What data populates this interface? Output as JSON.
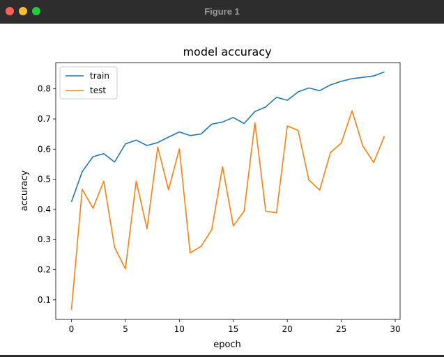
{
  "window": {
    "title": "Figure 1",
    "colors": {
      "close": "#ff5f57",
      "minimize": "#febc2e",
      "maximize": "#28c840"
    }
  },
  "chart_data": {
    "type": "line",
    "title": "model accuracy",
    "xlabel": "epoch",
    "ylabel": "accuracy",
    "xlim": [
      -1.45,
      30.45
    ],
    "ylim": [
      0.035,
      0.887
    ],
    "xticks": [
      0,
      5,
      10,
      15,
      20,
      25,
      30
    ],
    "yticks": [
      0.1,
      0.2,
      0.3,
      0.4,
      0.5,
      0.6,
      0.7,
      0.8
    ],
    "legend": {
      "placement": "upper-left"
    },
    "grid": false,
    "x": [
      0,
      1,
      2,
      3,
      4,
      5,
      6,
      7,
      8,
      9,
      10,
      11,
      12,
      13,
      14,
      15,
      16,
      17,
      18,
      19,
      20,
      21,
      22,
      23,
      24,
      25,
      26,
      27,
      28,
      29
    ],
    "series": [
      {
        "name": "train",
        "color": "#1f77b4",
        "values": [
          0.425,
          0.525,
          0.575,
          0.585,
          0.557,
          0.617,
          0.63,
          0.612,
          0.622,
          0.64,
          0.657,
          0.645,
          0.65,
          0.683,
          0.69,
          0.705,
          0.685,
          0.725,
          0.74,
          0.772,
          0.762,
          0.79,
          0.803,
          0.794,
          0.813,
          0.825,
          0.834,
          0.838,
          0.843,
          0.856
        ]
      },
      {
        "name": "test",
        "color": "#ff7f0e",
        "values": [
          0.067,
          0.467,
          0.404,
          0.494,
          0.274,
          0.203,
          0.494,
          0.336,
          0.607,
          0.465,
          0.601,
          0.256,
          0.277,
          0.333,
          0.542,
          0.345,
          0.394,
          0.688,
          0.394,
          0.389,
          0.677,
          0.662,
          0.498,
          0.464,
          0.589,
          0.62,
          0.727,
          0.61,
          0.556,
          0.643
        ]
      }
    ]
  }
}
